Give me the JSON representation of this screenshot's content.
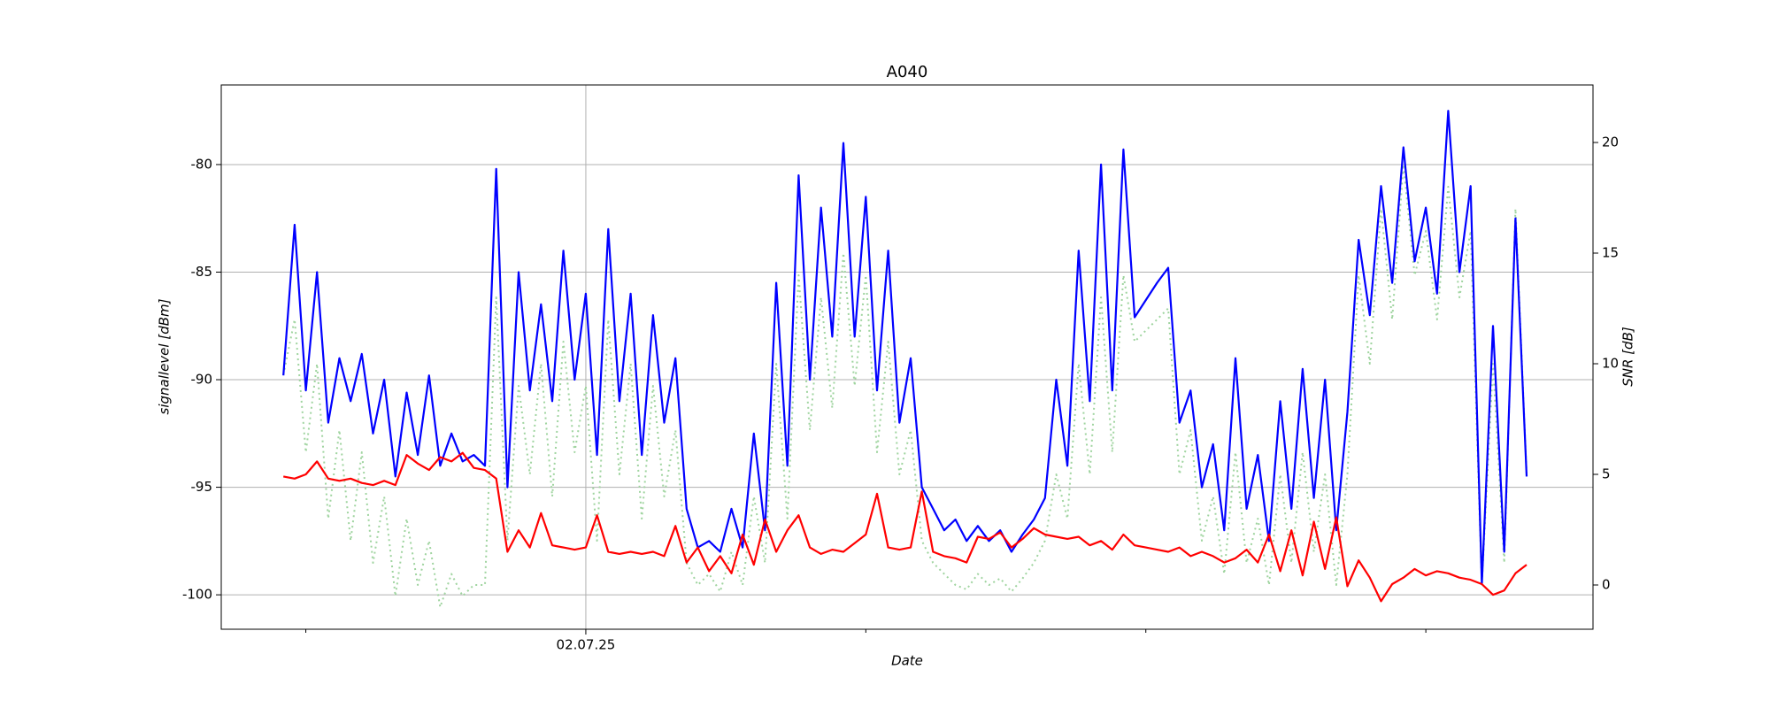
{
  "chart_data": {
    "type": "line",
    "title": "A040",
    "xlabel": "Date",
    "ylabel": "signallevel [dBm]",
    "y2label": "SNR [dB]",
    "xlim": [
      -0.302,
      4.597
    ],
    "ylim": [
      -101.6,
      -76.3
    ],
    "y2lim": [
      -2,
      22.6
    ],
    "xticks": [
      {
        "value": 1,
        "label": "02.07.25"
      }
    ],
    "xminorticks": [
      0,
      2,
      3,
      4
    ],
    "yticks": [
      -100,
      -95,
      -90,
      -85,
      -80
    ],
    "y2ticks": [
      0,
      5,
      10,
      15,
      20
    ],
    "grid": true,
    "x": [
      -0.08,
      -0.04,
      0,
      0.04,
      0.08,
      0.12,
      0.16,
      0.2,
      0.24,
      0.28,
      0.32,
      0.36,
      0.4,
      0.44,
      0.48,
      0.52,
      0.56,
      0.6,
      0.64,
      0.68,
      0.72,
      0.76,
      0.8,
      0.84,
      0.88,
      0.92,
      0.96,
      1.0,
      1.04,
      1.08,
      1.12,
      1.16,
      1.2,
      1.24,
      1.28,
      1.32,
      1.36,
      1.4,
      1.44,
      1.48,
      1.52,
      1.56,
      1.6,
      1.64,
      1.68,
      1.72,
      1.76,
      1.8,
      1.84,
      1.88,
      1.92,
      1.96,
      2.0,
      2.04,
      2.08,
      2.12,
      2.16,
      2.2,
      2.24,
      2.28,
      2.32,
      2.36,
      2.4,
      2.44,
      2.48,
      2.52,
      2.56,
      2.6,
      2.64,
      2.68,
      2.72,
      2.76,
      2.8,
      2.84,
      2.88,
      2.92,
      2.96,
      3.0,
      3.04,
      3.08,
      3.12,
      3.16,
      3.2,
      3.24,
      3.28,
      3.32,
      3.36,
      3.4,
      3.44,
      3.48,
      3.52,
      3.56,
      3.6,
      3.64,
      3.68,
      3.72,
      3.76,
      3.8,
      3.84,
      3.88,
      3.92,
      3.96,
      4.0,
      4.04,
      4.08,
      4.12,
      4.16,
      4.2,
      4.24,
      4.28,
      4.32,
      4.36
    ],
    "series": [
      {
        "color": "#9fd49f",
        "dash": "dotted",
        "axis": "y2",
        "values": [
          9.5,
          12,
          6,
          10,
          3,
          7,
          2,
          6,
          1,
          4,
          -0.5,
          3,
          0,
          2,
          -1,
          0.5,
          -0.5,
          0,
          0,
          13,
          2,
          9,
          5,
          10,
          4,
          11,
          6,
          9,
          2,
          12,
          5,
          10,
          3,
          9,
          4,
          7,
          1,
          0,
          0.5,
          -0.3,
          1.5,
          0,
          4,
          1,
          10,
          3,
          14,
          7,
          13,
          8,
          15,
          9,
          14,
          6,
          11,
          5,
          7,
          2,
          1,
          0.5,
          0,
          -0.2,
          0.5,
          0,
          0.3,
          -0.3,
          0.3,
          1,
          2,
          5,
          3,
          10,
          5,
          13,
          6,
          14,
          11,
          11.5,
          12,
          12.5,
          5,
          7,
          2,
          4,
          0.5,
          6,
          1,
          3,
          0,
          5,
          1,
          6,
          1.5,
          5,
          0,
          5,
          14,
          10,
          17,
          12,
          19,
          14,
          16,
          12,
          18,
          13,
          16,
          0,
          10,
          1,
          17,
          5
        ]
      },
      {
        "color": "#0000ff",
        "values": [
          -89.8,
          -82.8,
          -90.5,
          -85,
          -92,
          -89,
          -91,
          -88.8,
          -92.5,
          -90,
          -94.5,
          -90.6,
          -93.5,
          -89.8,
          -94,
          -92.5,
          -93.8,
          -93.5,
          -94,
          -80.2,
          -95,
          -85,
          -90.5,
          -86.5,
          -91,
          -84,
          -90,
          -86,
          -93.5,
          -83,
          -91,
          -86,
          -93.5,
          -87,
          -92,
          -89,
          -96,
          -97.8,
          -97.5,
          -98,
          -96,
          -97.8,
          -92.5,
          -97,
          -85.5,
          -94,
          -80.5,
          -90,
          -82,
          -88,
          -79,
          -88,
          -81.5,
          -90.5,
          -84,
          -92,
          -89,
          -95,
          -96,
          -97,
          -96.5,
          -97.5,
          -96.8,
          -97.5,
          -97,
          -98,
          -97.2,
          -96.5,
          -95.5,
          -90,
          -94,
          -84,
          -91,
          -80,
          -90.5,
          -79.3,
          -87.1,
          -86.3,
          -85.5,
          -84.8,
          -92,
          -90.5,
          -95,
          -93,
          -97,
          -89,
          -96,
          -93.5,
          -97.5,
          -91,
          -96,
          -89.5,
          -95.5,
          -90,
          -97,
          -91.5,
          -83.5,
          -87,
          -81,
          -85.5,
          -79.2,
          -84.5,
          -82,
          -86,
          -77.5,
          -85,
          -81,
          -99.5,
          -87.5,
          -98,
          -82.5,
          -94.5
        ]
      },
      {
        "color": "#ff0000",
        "values": [
          -94.5,
          -94.6,
          -94.4,
          -93.8,
          -94.6,
          -94.7,
          -94.6,
          -94.8,
          -94.9,
          -94.7,
          -94.9,
          -93.5,
          -93.9,
          -94.2,
          -93.6,
          -93.8,
          -93.4,
          -94.1,
          -94.2,
          -94.6,
          -98,
          -97,
          -97.8,
          -96.2,
          -97.7,
          -97.8,
          -97.9,
          -97.8,
          -96.3,
          -98,
          -98.1,
          -98,
          -98.1,
          -98,
          -98.2,
          -96.8,
          -98.5,
          -97.8,
          -98.9,
          -98.2,
          -99,
          -97.2,
          -98.6,
          -96.5,
          -98,
          -97,
          -96.3,
          -97.8,
          -98.1,
          -97.9,
          -98,
          -97.6,
          -97.2,
          -95.3,
          -97.8,
          -97.9,
          -97.8,
          -95.2,
          -98,
          -98.2,
          -98.3,
          -98.5,
          -97.3,
          -97.4,
          -97.1,
          -97.8,
          -97.4,
          -96.9,
          -97.2,
          -97.3,
          -97.4,
          -97.3,
          -97.7,
          -97.5,
          -97.9,
          -97.2,
          -97.7,
          -97.8,
          -97.9,
          -98,
          -97.8,
          -98.2,
          -98,
          -98.2,
          -98.5,
          -98.3,
          -97.9,
          -98.5,
          -97.2,
          -98.9,
          -97,
          -99.1,
          -96.6,
          -98.8,
          -96.4,
          -99.6,
          -98.4,
          -99.2,
          -100.3,
          -99.5,
          -99.2,
          -98.8,
          -99.1,
          -98.9,
          -99,
          -99.2,
          -99.3,
          -99.5,
          -100,
          -99.8,
          -99,
          -98.6
        ]
      }
    ]
  }
}
